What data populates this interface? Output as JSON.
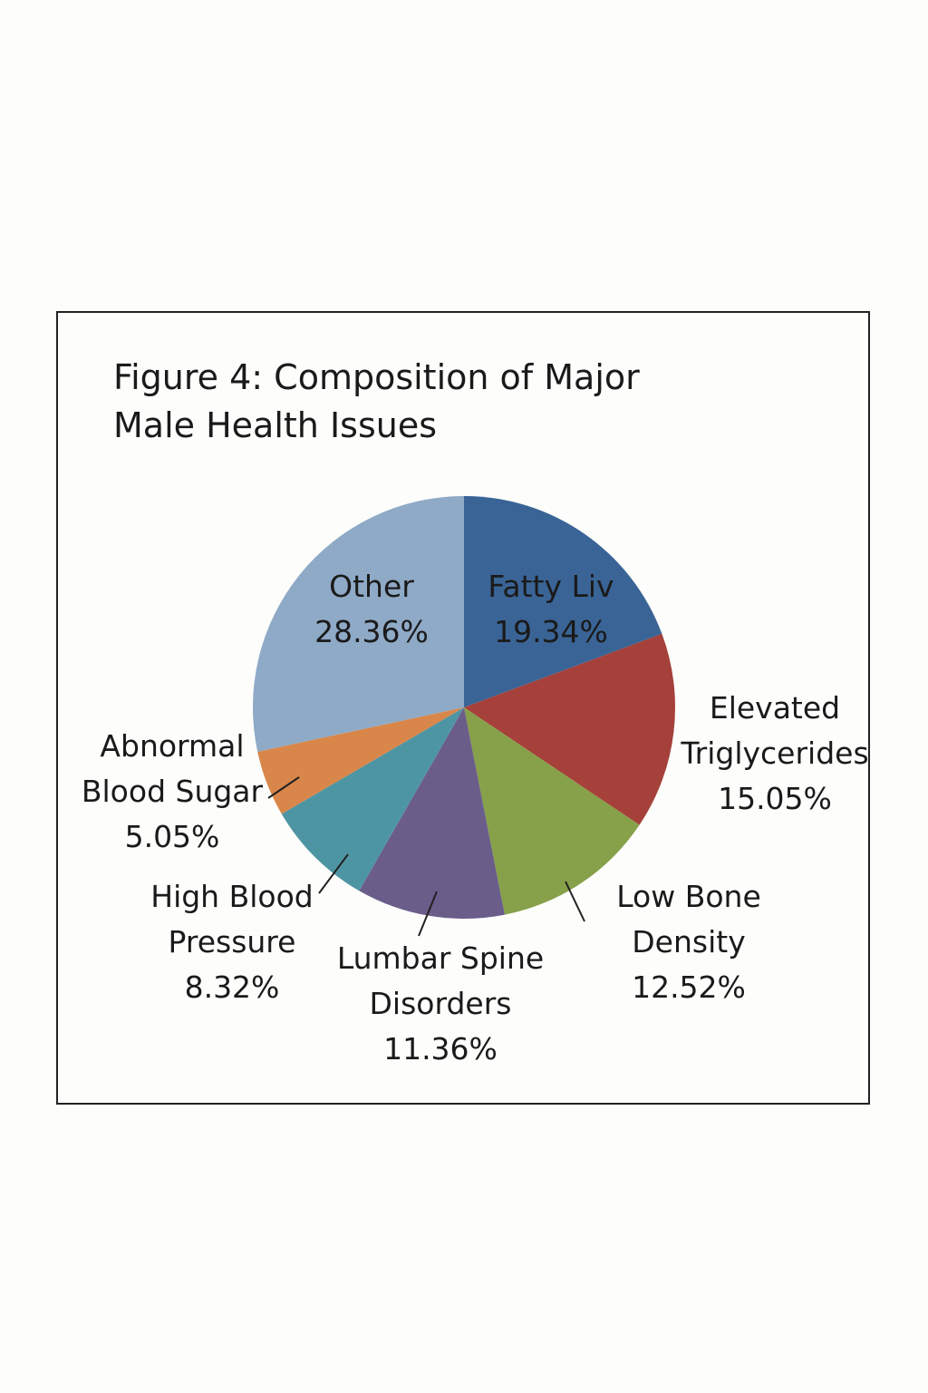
{
  "chart_data": {
    "type": "pie",
    "title": "Figure 4: Composition of Major Male Health Issues",
    "categories": [
      "Fatty Liv",
      "Elevated Triglycerides",
      "Low Bone Density",
      "Lumbar Spine Disorders",
      "High Blood Pressure",
      "Abnormal Blood Sugar",
      "Other"
    ],
    "values": [
      19.34,
      15.05,
      12.52,
      11.36,
      8.32,
      5.05,
      28.36
    ],
    "value_labels": [
      "19.34%",
      "15.05%",
      "12.52%",
      "11.36%",
      "8.32%",
      "5.05%",
      "28.36%"
    ],
    "colors": [
      "#3a6496",
      "#a5413a",
      "#87a04a",
      "#6a5d8a",
      "#4e95a3",
      "#d9864a",
      "#8faac7"
    ]
  }
}
